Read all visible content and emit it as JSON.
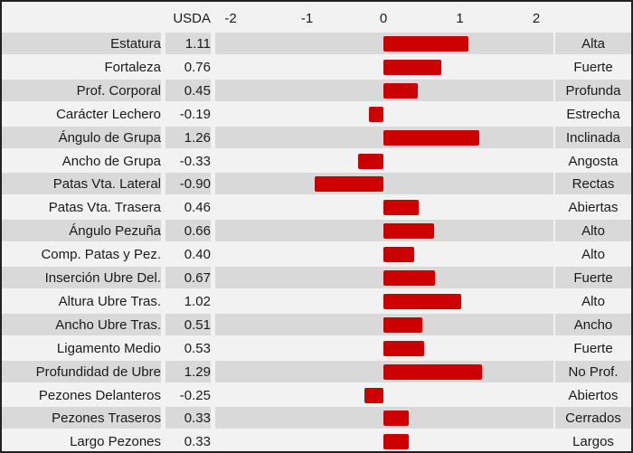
{
  "chart_data": {
    "type": "bar",
    "orientation": "horizontal",
    "value_header": "USDA",
    "xlim": [
      -2.05,
      2.2
    ],
    "ticks": [
      "-2",
      "-1",
      "0",
      "1",
      "2"
    ],
    "tick_values": [
      -2,
      -1,
      0,
      1,
      2
    ],
    "bar_color": "#cc0000",
    "row_colors": [
      "#d9d9d9",
      "#f2f2f2"
    ],
    "categories": [
      "Estatura",
      "Fortaleza",
      "Prof. Corporal",
      "Carácter Lechero",
      "Ángulo de Grupa",
      "Ancho de Grupa",
      "Patas Vta. Lateral",
      "Patas Vta. Trasera",
      "Ángulo Pezuña",
      "Comp. Patas y Pez.",
      "Inserción Ubre Del.",
      "Altura Ubre Tras.",
      "Ancho Ubre Tras.",
      "Ligamento Medio",
      "Profundidad de Ubre",
      "Pezones Delanteros",
      "Pezones Traseros",
      "Largo Pezones"
    ],
    "value_labels": [
      "1.11",
      "0.76",
      "0.45",
      "-0.19",
      "1.26",
      "-0.33",
      "-0.90",
      "0.46",
      "0.66",
      "0.40",
      "0.67",
      "1.02",
      "0.51",
      "0.53",
      "1.29",
      "-0.25",
      "0.33",
      "0.33"
    ],
    "values": [
      1.11,
      0.76,
      0.45,
      -0.19,
      1.26,
      -0.33,
      -0.9,
      0.46,
      0.66,
      0.4,
      0.67,
      1.02,
      0.51,
      0.53,
      1.29,
      -0.25,
      0.33,
      0.33
    ],
    "descriptors": [
      "Alta",
      "Fuerte",
      "Profunda",
      "Estrecha",
      "Inclinada",
      "Angosta",
      "Rectas",
      "Abiertas",
      "Alto",
      "Alto",
      "Fuerte",
      "Alto",
      "Ancho",
      "Fuerte",
      "No Prof.",
      "Abiertos",
      "Cerrados",
      "Largos"
    ]
  }
}
